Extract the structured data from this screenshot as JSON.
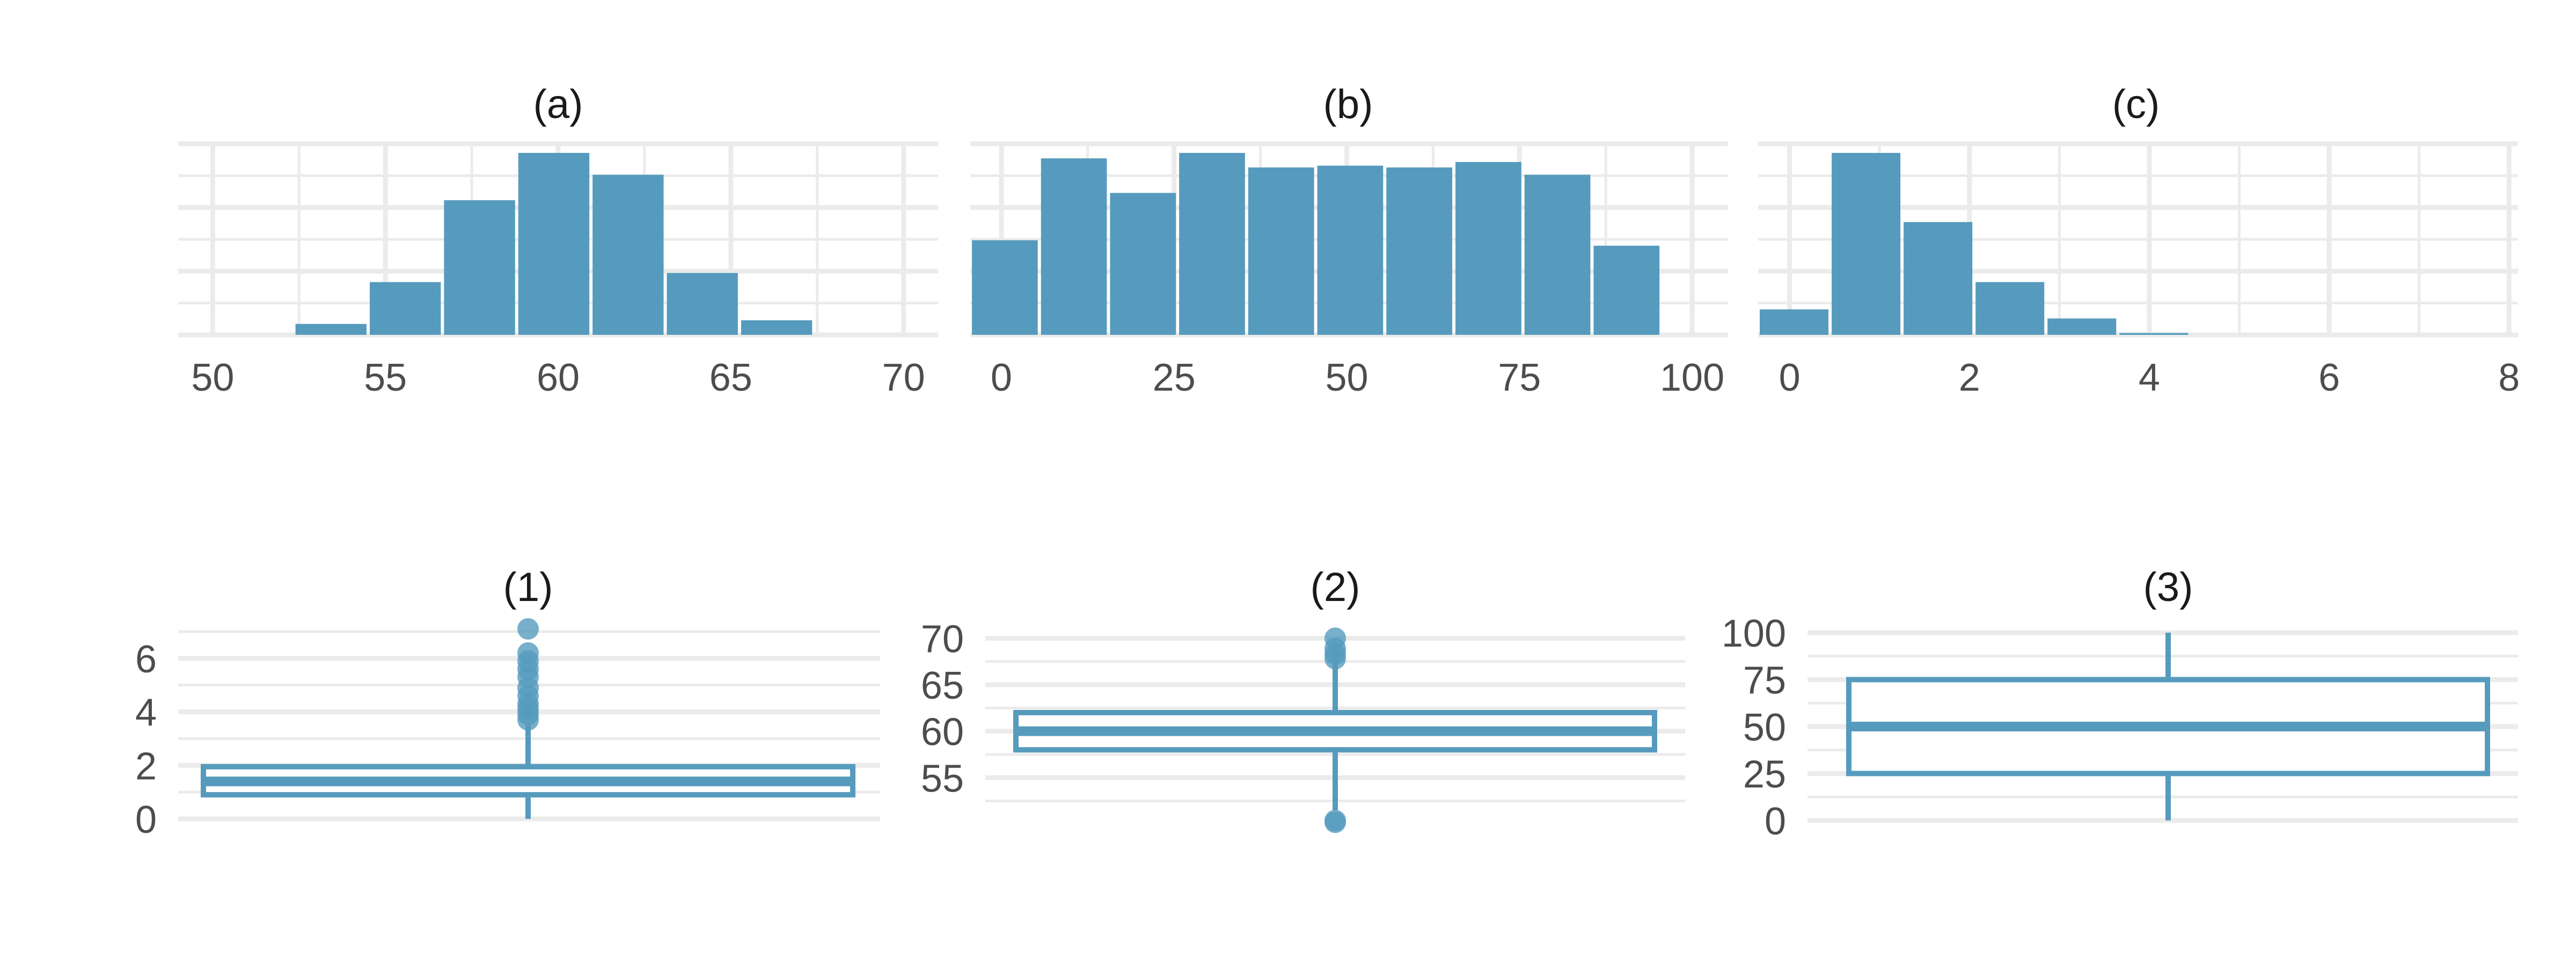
{
  "colors": {
    "fill": "#569BBD",
    "grid": "#EBEBEB",
    "text": "#1A1A1A",
    "axis_text": "#4D4D4D",
    "background": "#FFFFFF"
  },
  "chart_data": [
    {
      "id": "a",
      "type": "bar",
      "title": "(a)",
      "xlabel": "",
      "ylabel": "",
      "xlim": [
        49,
        71
      ],
      "x_ticks": [
        50,
        55,
        60,
        65,
        70
      ],
      "y_ticks_shown": false,
      "bin_width": 2.15,
      "bin_lefts": [
        52.35,
        54.5,
        56.65,
        58.8,
        60.95,
        63.1,
        65.25
      ],
      "values": [
        0.06,
        0.29,
        0.74,
        1.0,
        0.88,
        0.34,
        0.08
      ],
      "ylim": [
        0,
        1.05
      ],
      "grid": true
    },
    {
      "id": "b",
      "type": "bar",
      "title": "(b)",
      "xlabel": "",
      "ylabel": "",
      "xlim": [
        -4.5,
        105.2
      ],
      "x_ticks": [
        0,
        25,
        50,
        75,
        100
      ],
      "y_ticks_shown": false,
      "bin_width": 10,
      "bin_lefts": [
        -4.5,
        5.5,
        15.5,
        25.5,
        35.5,
        45.5,
        55.5,
        65.5,
        75.5,
        85.5
      ],
      "values": [
        0.52,
        0.97,
        0.78,
        1.0,
        0.92,
        0.93,
        0.92,
        0.95,
        0.88,
        0.49
      ],
      "ylim": [
        0,
        1.05
      ],
      "grid": true
    },
    {
      "id": "c",
      "type": "bar",
      "title": "(c)",
      "xlabel": "",
      "ylabel": "",
      "xlim": [
        -0.35,
        8.1
      ],
      "x_ticks": [
        0,
        2,
        4,
        6,
        8
      ],
      "y_ticks_shown": false,
      "bin_width": 0.8,
      "bin_lefts": [
        -0.35,
        0.45,
        1.25,
        2.05,
        2.85,
        3.65
      ],
      "values": [
        0.14,
        1.0,
        0.62,
        0.29,
        0.09,
        0.01
      ],
      "ylim": [
        0,
        1.05
      ],
      "grid": true
    }
  ],
  "boxplots": [
    {
      "id": "1",
      "type": "boxplot",
      "title": "(1)",
      "ylim": [
        -0.2,
        7.1
      ],
      "y_ticks": [
        0,
        2,
        4,
        6
      ],
      "grid": true,
      "q1": 0.9,
      "median": 1.4,
      "q3": 1.95,
      "whisker_low": 0,
      "whisker_high": 3.5,
      "outliers": [
        3.7,
        3.9,
        4.1,
        4.3,
        4.6,
        4.9,
        5.3,
        5.6,
        5.9,
        6.2,
        7.1
      ]
    },
    {
      "id": "2",
      "type": "boxplot",
      "title": "(2)",
      "ylim": [
        50,
        71
      ],
      "y_ticks": [
        55,
        60,
        65,
        70
      ],
      "grid": true,
      "q1": 58.0,
      "median": 60.0,
      "q3": 62.0,
      "whisker_low": 51.5,
      "whisker_high": 68.5,
      "outliers": [
        50.2,
        50.4,
        67.8,
        68.3,
        68.9,
        70.0
      ]
    },
    {
      "id": "3",
      "type": "boxplot",
      "title": "(3)",
      "ylim": [
        -2,
        102
      ],
      "y_ticks": [
        0,
        25,
        50,
        75,
        100
      ],
      "grid": true,
      "q1": 25,
      "median": 50,
      "q3": 75,
      "whisker_low": 0,
      "whisker_high": 100,
      "outliers": []
    }
  ]
}
